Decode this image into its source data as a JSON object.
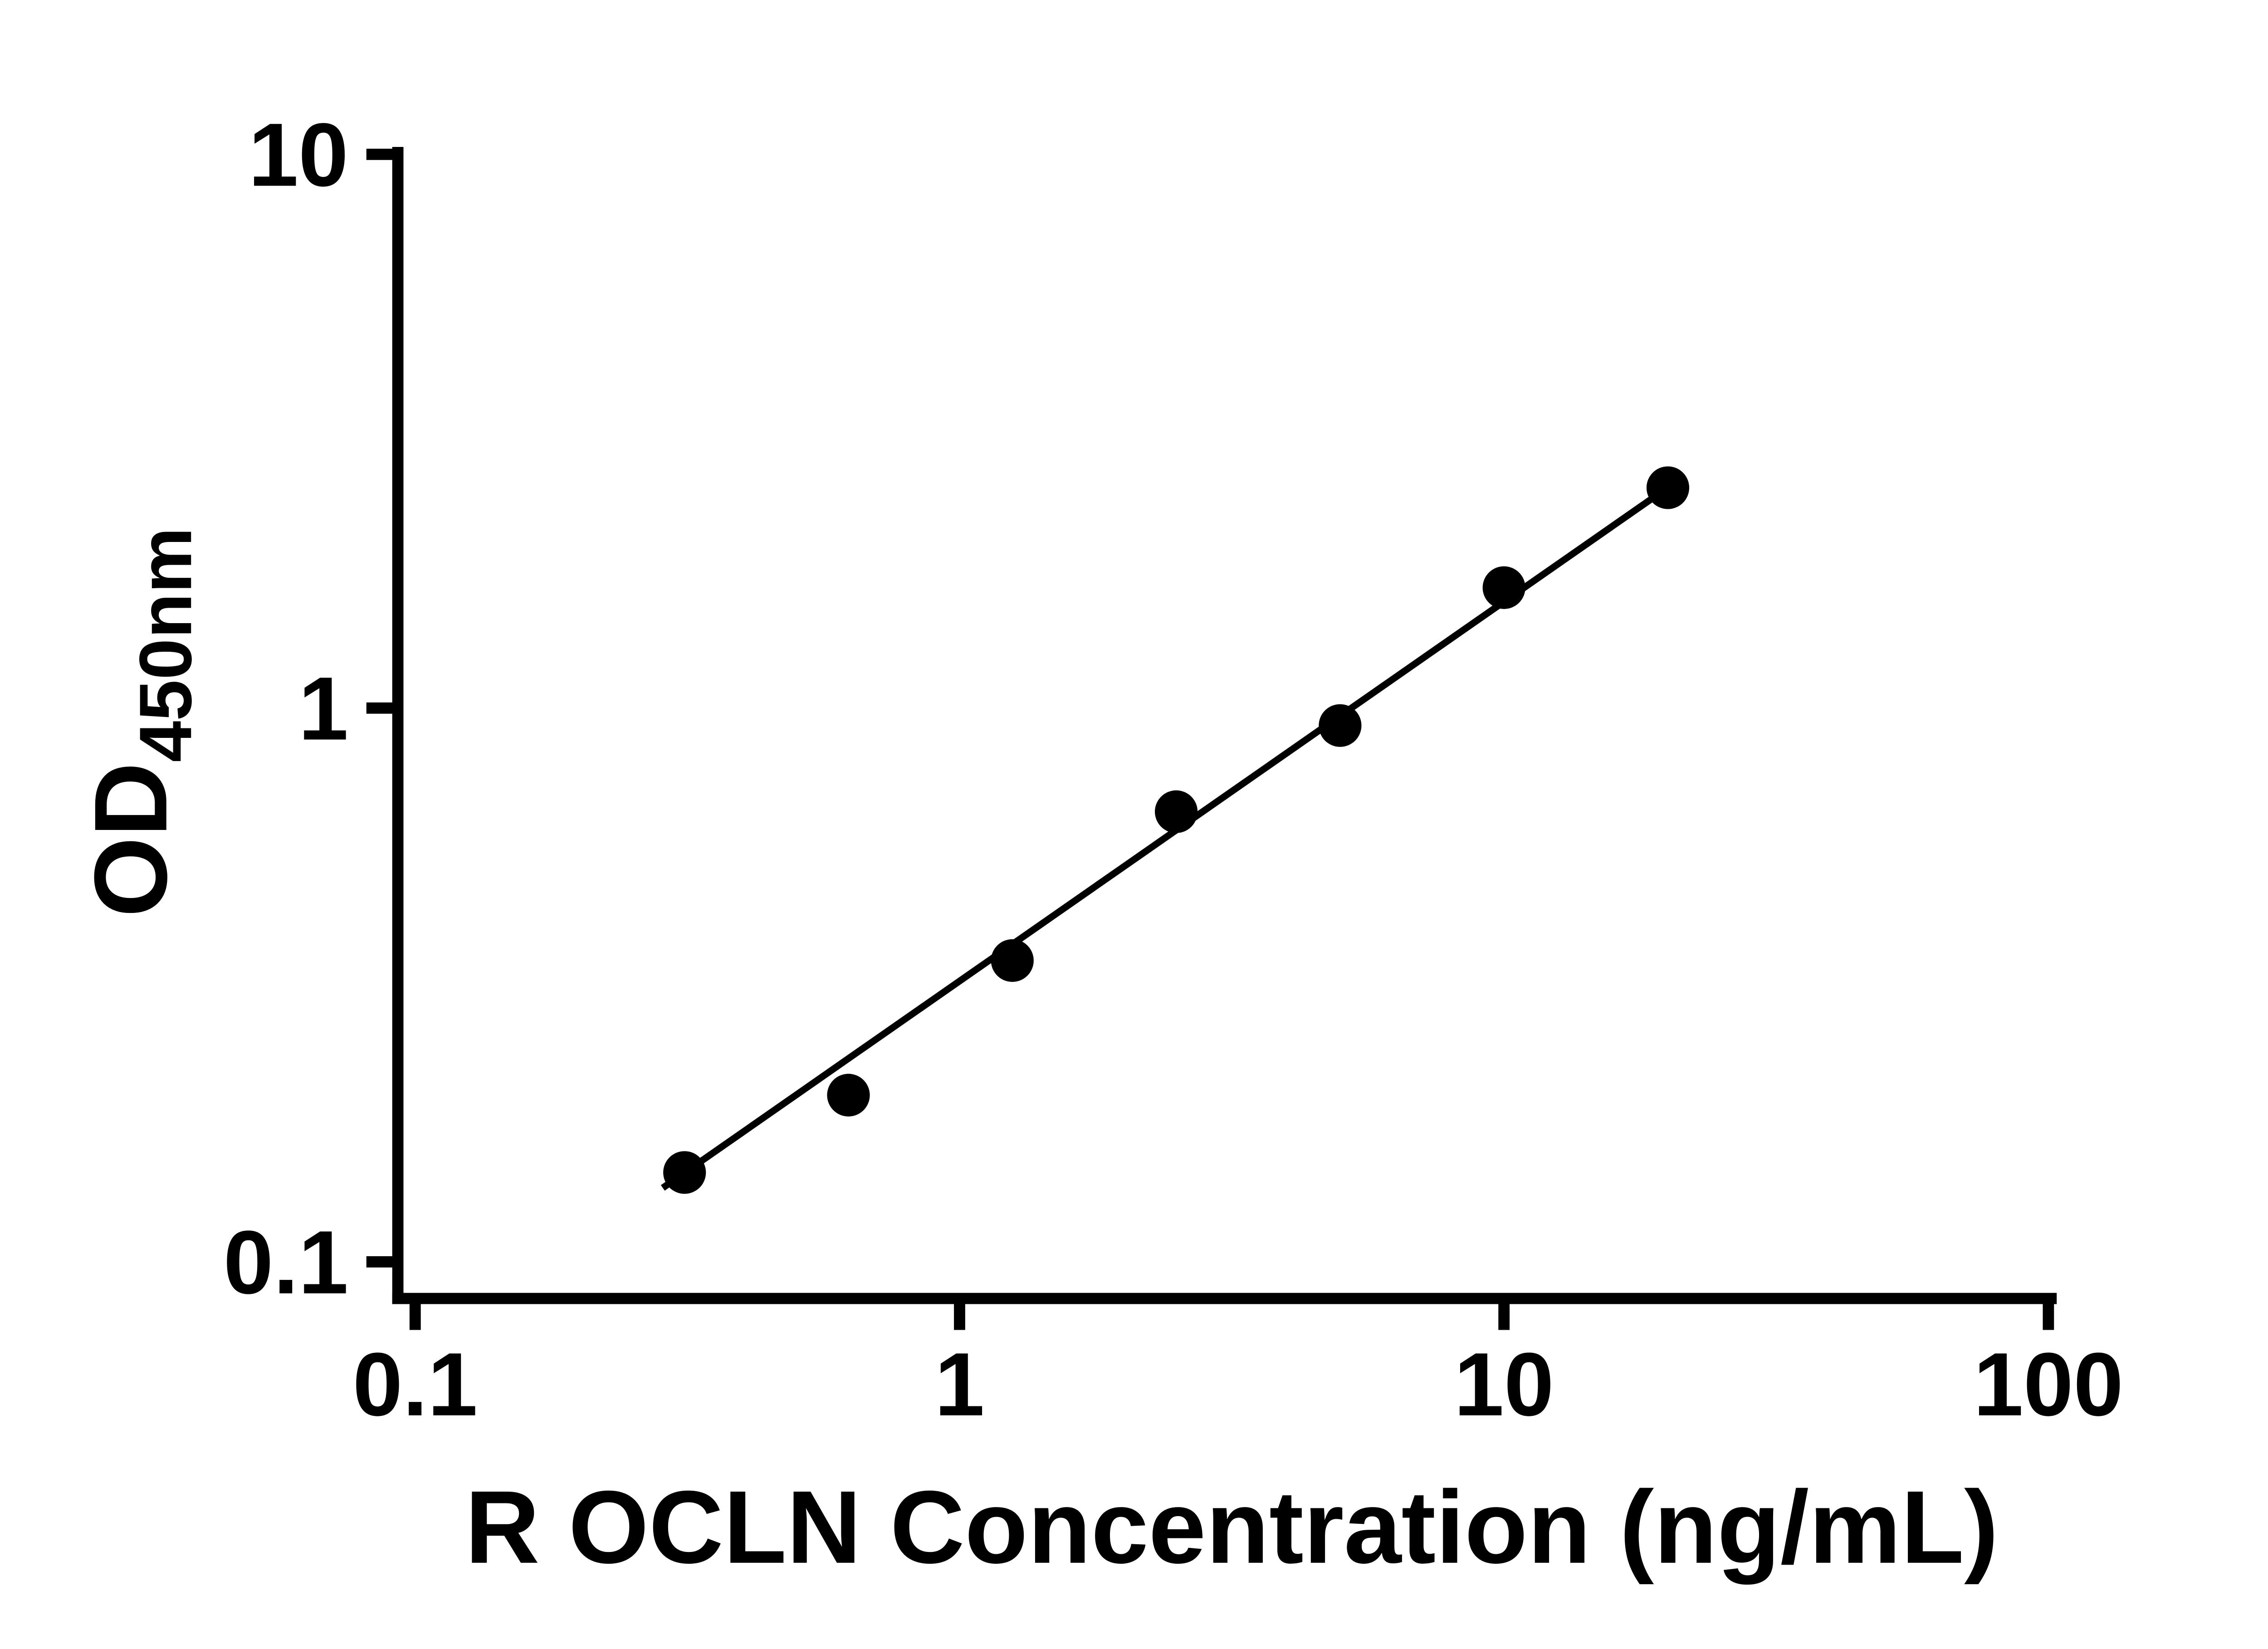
{
  "chart_data": {
    "type": "scatter",
    "title": "",
    "xlabel": "R OCLN Concentration (ng/mL)",
    "ylabel_main": "OD",
    "ylabel_sub": "450nm",
    "x_scale": "log",
    "y_scale": "log",
    "xlim": [
      0.1,
      100
    ],
    "ylim": [
      0.1,
      10
    ],
    "x_ticks": [
      0.1,
      1,
      10,
      100
    ],
    "x_tick_labels": [
      "0.1",
      "1",
      "10",
      "100"
    ],
    "y_ticks": [
      0.1,
      1,
      10
    ],
    "y_tick_labels": [
      "0.1",
      "1",
      "10"
    ],
    "points": [
      {
        "x": 0.3125,
        "y": 0.145
      },
      {
        "x": 0.625,
        "y": 0.2
      },
      {
        "x": 1.25,
        "y": 0.35
      },
      {
        "x": 2.5,
        "y": 0.65
      },
      {
        "x": 5,
        "y": 0.93
      },
      {
        "x": 10,
        "y": 1.65
      },
      {
        "x": 20,
        "y": 2.5
      }
    ],
    "trendline": {
      "x1": 0.285,
      "y1": 0.136,
      "x2": 20.5,
      "y2": 2.545
    },
    "marker_color": "#000000",
    "line_color": "#000000",
    "axis_color": "#000000",
    "background": "#ffffff",
    "grid": false,
    "legend": null
  }
}
